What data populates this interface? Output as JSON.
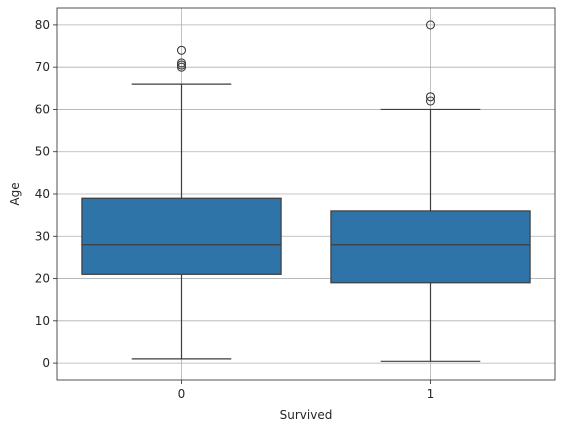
{
  "chart_data": {
    "type": "box",
    "xlabel": "Survived",
    "ylabel": "Age",
    "categories": [
      "0",
      "1"
    ],
    "ylim": [
      -4,
      84
    ],
    "yticks": [
      0,
      10,
      20,
      30,
      40,
      50,
      60,
      70,
      80
    ],
    "grid": true,
    "box_color": "#2f74a9",
    "line_color": "#3d3d3d",
    "grid_color": "#b0b0b0",
    "boxes": [
      {
        "category": "0",
        "whisker_low": 1,
        "q1": 21,
        "median": 28,
        "q3": 39,
        "whisker_high": 66,
        "outliers": [
          70,
          70.5,
          71,
          74
        ]
      },
      {
        "category": "1",
        "whisker_low": 0.42,
        "q1": 19,
        "median": 28,
        "q3": 36,
        "whisker_high": 60,
        "outliers": [
          62,
          63,
          80
        ]
      }
    ]
  }
}
